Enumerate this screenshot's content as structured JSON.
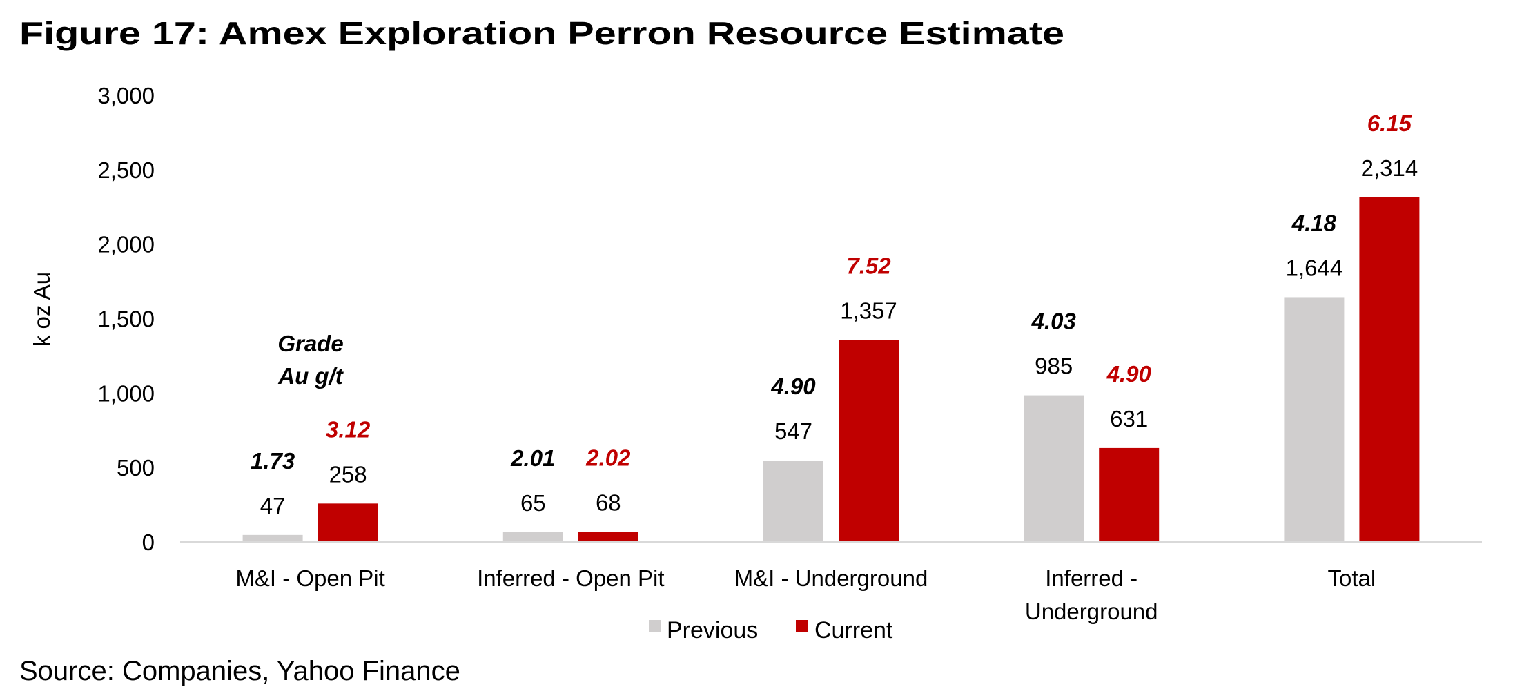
{
  "title": "Figure 17: Amex Exploration Perron Resource Estimate",
  "source": "Source: Companies, Yahoo Finance",
  "chart_data": {
    "type": "bar",
    "title": "Figure 17: Amex Exploration Perron Resource Estimate",
    "ylabel": "k oz Au",
    "xlabel": "",
    "ylim": [
      0,
      3000
    ],
    "yticks": [
      "0",
      "500",
      "1,000",
      "1,500",
      "2,000",
      "2,500",
      "3,000"
    ],
    "ytick_values": [
      0,
      500,
      1000,
      1500,
      2000,
      2500,
      3000
    ],
    "grid": false,
    "legend_position": "bottom",
    "categories": [
      [
        "M&I - Open Pit"
      ],
      [
        "Inferred - Open Pit"
      ],
      [
        "M&I - Underground"
      ],
      [
        "Inferred -",
        "Underground"
      ],
      [
        "Total"
      ]
    ],
    "series": [
      {
        "name": "Previous",
        "color": "#D0CECE",
        "grade_color": "#000000",
        "values": [
          47,
          65,
          547,
          985,
          1644
        ],
        "value_labels": [
          "47",
          "65",
          "547",
          "985",
          "1,644"
        ],
        "grade_labels": [
          "1.73",
          "2.01",
          "4.90",
          "4.03",
          "4.18"
        ]
      },
      {
        "name": "Current",
        "color": "#C00000",
        "grade_color": "#C00000",
        "values": [
          258,
          68,
          1357,
          631,
          2314
        ],
        "value_labels": [
          "258",
          "68",
          "1,357",
          "631",
          "2,314"
        ],
        "grade_labels": [
          "3.12",
          "2.02",
          "7.52",
          "4.90",
          "6.15"
        ]
      }
    ],
    "annotation": [
      "Grade",
      "Au g/t"
    ]
  }
}
